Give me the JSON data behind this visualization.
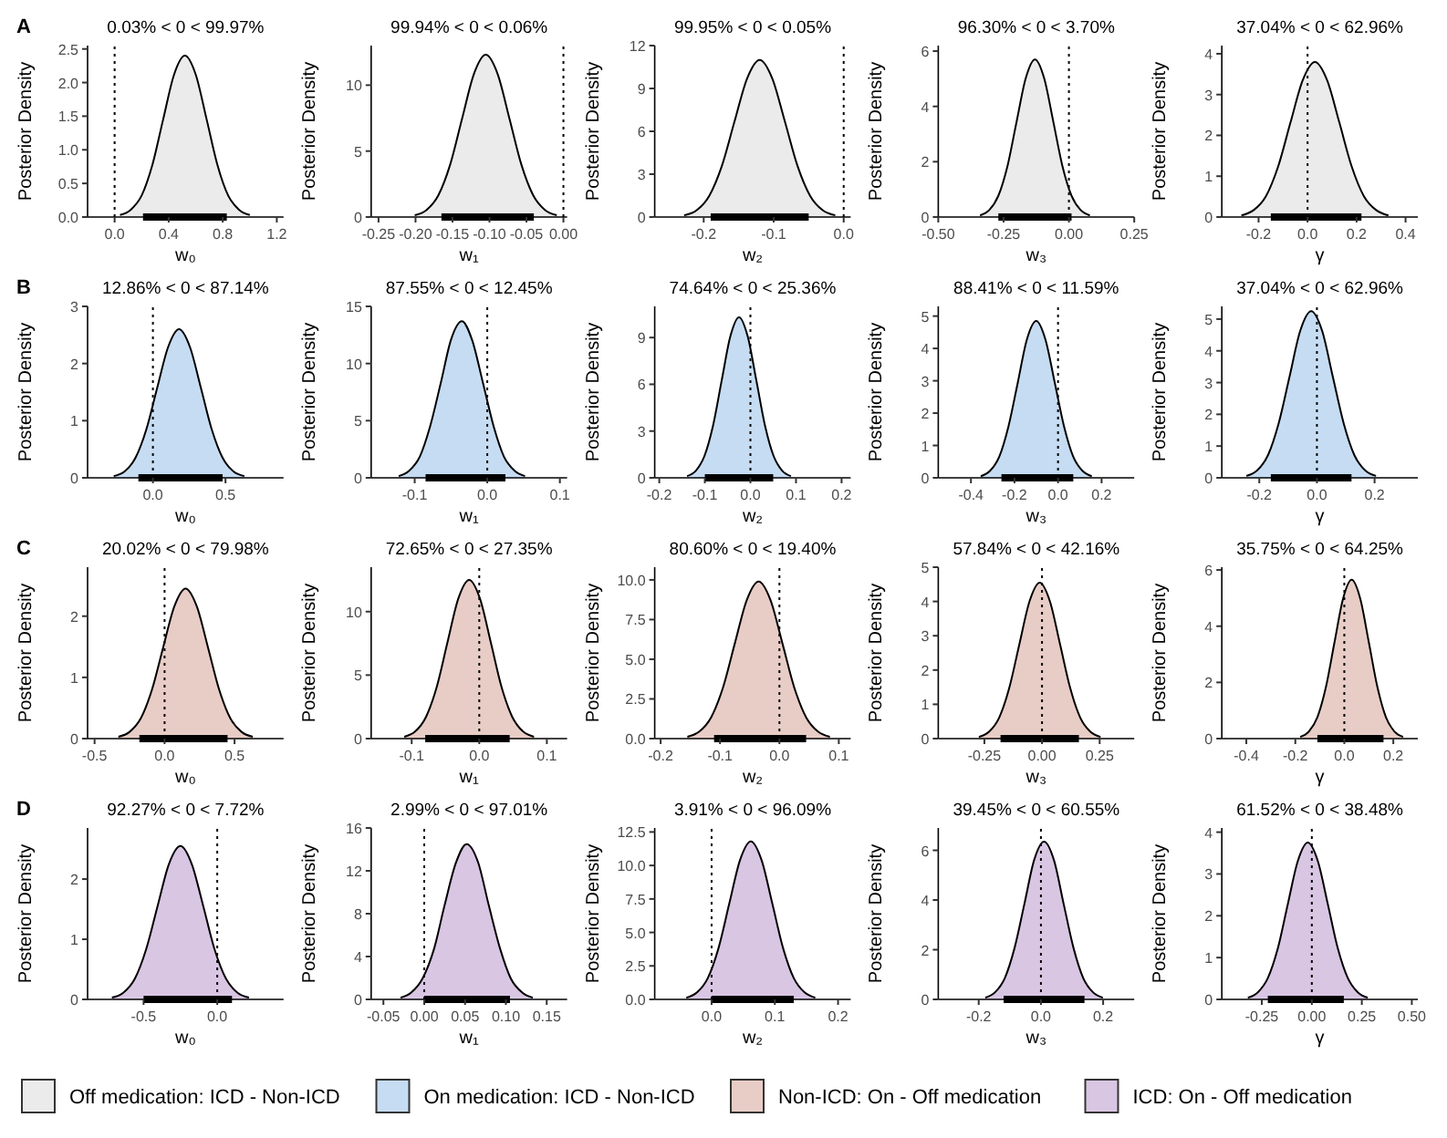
{
  "chart_data": [
    {
      "type": "area",
      "title": "A",
      "xlabel": "w₀",
      "ylabel": "Posterior Density",
      "annotations": [
        "0.03% < 0 < 99.97%"
      ],
      "xlim": [
        -0.2,
        1.25
      ],
      "xticks": [
        {
          "value": 0,
          "label": "0.0"
        },
        0.4,
        0.8,
        1.2
      ],
      "ylim": [
        0,
        2.55
      ],
      "yticks": [
        {
          "value": 0,
          "label": "0.0"
        },
        0.5,
        {
          "value": 1,
          "label": "1.0"
        },
        1.5,
        {
          "value": 2,
          "label": "2.0"
        },
        2.5
      ],
      "ref_lines": [
        {
          "axis": "x",
          "value": 0,
          "line_style": "dotted"
        }
      ],
      "legend": "bottom",
      "series": [
        {
          "name": "Off medication: ICD - Non-ICD",
          "type": "area",
          "color": "#ebebeb",
          "x": [
            0.04,
            0.12,
            0.2,
            0.28,
            0.36,
            0.44,
            0.52,
            0.6,
            0.68,
            0.76,
            0.84,
            0.92,
            1.0
          ],
          "values": [
            0.03,
            0.11,
            0.32,
            0.78,
            1.46,
            2.12,
            2.4,
            2.12,
            1.46,
            0.78,
            0.32,
            0.11,
            0.03
          ]
        },
        {
          "type": "line",
          "color": "#000000",
          "x": [
            0.21,
            0.83
          ],
          "values": [
            0,
            0
          ]
        }
      ]
    },
    {
      "type": "area",
      "xlabel": "w₁",
      "ylabel": "Posterior Density",
      "annotations": [
        "99.94% < 0 < 0.06%"
      ],
      "xlim": [
        -0.26,
        0.005
      ],
      "xticks": [
        -0.25,
        {
          "value": -0.2,
          "label": "-0.20"
        },
        -0.15,
        {
          "value": -0.1,
          "label": "-0.10"
        },
        -0.05,
        {
          "value": 0,
          "label": "0.00"
        }
      ],
      "ylim": [
        0,
        13
      ],
      "yticks": [
        0,
        5,
        10
      ],
      "ref_lines": [
        {
          "axis": "x",
          "value": 0,
          "line_style": "dotted"
        }
      ],
      "series": [
        {
          "type": "area",
          "color": "#ebebeb",
          "x": [
            -0.201,
            -0.185,
            -0.169,
            -0.153,
            -0.137,
            -0.121,
            -0.105,
            -0.089,
            -0.073,
            -0.057,
            -0.041,
            -0.025,
            -0.009
          ],
          "values": [
            0.14,
            0.54,
            1.66,
            4.0,
            7.47,
            10.85,
            12.3,
            10.85,
            7.47,
            4.0,
            1.66,
            0.54,
            0.14
          ]
        },
        {
          "type": "line",
          "color": "#000000",
          "x": [
            -0.165,
            -0.04
          ],
          "values": [
            0,
            0
          ]
        }
      ]
    },
    {
      "type": "area",
      "xlabel": "w₂",
      "ylabel": "Posterior Density",
      "annotations": [
        "99.95% < 0 < 0.05%"
      ],
      "xlim": [
        -0.27,
        0.01
      ],
      "xticks": [
        -0.2,
        -0.1,
        {
          "value": 0,
          "label": "0.0"
        }
      ],
      "ylim": [
        0,
        12
      ],
      "yticks": [
        0,
        3,
        6,
        9,
        12
      ],
      "ref_lines": [
        {
          "axis": "x",
          "value": 0,
          "line_style": "dotted"
        }
      ],
      "series": [
        {
          "type": "area",
          "color": "#ebebeb",
          "x": [
            -0.228,
            -0.21,
            -0.192,
            -0.174,
            -0.156,
            -0.138,
            -0.12,
            -0.102,
            -0.084,
            -0.066,
            -0.048,
            -0.03,
            -0.012
          ],
          "values": [
            0.12,
            0.48,
            1.49,
            3.58,
            6.68,
            9.7,
            11,
            9.7,
            6.68,
            3.58,
            1.49,
            0.48,
            0.12
          ]
        },
        {
          "type": "line",
          "color": "#000000",
          "x": [
            -0.19,
            -0.05
          ],
          "values": [
            0,
            0
          ]
        }
      ]
    },
    {
      "type": "area",
      "xlabel": "w₃",
      "ylabel": "Posterior Density",
      "annotations": [
        "96.30% < 0 < 3.70%"
      ],
      "xlim": [
        -0.5,
        0.25
      ],
      "xticks": [
        {
          "value": -0.5,
          "label": "-0.50"
        },
        -0.25,
        {
          "value": 0,
          "label": "0.00"
        },
        0.25
      ],
      "ylim": [
        0,
        6.2
      ],
      "yticks": [
        0,
        2,
        4,
        6
      ],
      "ref_lines": [
        {
          "axis": "x",
          "value": 0,
          "line_style": "dotted"
        }
      ],
      "series": [
        {
          "type": "area",
          "color": "#ebebeb",
          "x": [
            -0.34,
            -0.305,
            -0.27,
            -0.235,
            -0.2,
            -0.165,
            -0.13,
            -0.095,
            -0.06,
            -0.025,
            0.01,
            0.045,
            0.08
          ],
          "values": [
            0.06,
            0.25,
            0.77,
            1.85,
            3.46,
            5.03,
            5.7,
            5.03,
            3.46,
            1.85,
            0.77,
            0.25,
            0.06
          ]
        },
        {
          "type": "line",
          "color": "#000000",
          "x": [
            -0.27,
            0.01
          ],
          "values": [
            0,
            0
          ]
        }
      ]
    },
    {
      "type": "area",
      "xlabel": "γ",
      "ylabel": "Posterior Density",
      "annotations": [
        "37.04% < 0 < 62.96%"
      ],
      "xlim": [
        -0.35,
        0.45
      ],
      "xticks": [
        -0.2,
        {
          "value": 0,
          "label": "0.0"
        },
        0.2,
        0.4
      ],
      "ylim": [
        0,
        4.2
      ],
      "yticks": [
        0,
        1,
        2,
        3,
        4
      ],
      "ref_lines": [
        {
          "axis": "x",
          "value": 0,
          "line_style": "dotted"
        }
      ],
      "series": [
        {
          "type": "area",
          "color": "#ebebeb",
          "x": [
            -0.27,
            -0.22,
            -0.17,
            -0.12,
            -0.07,
            -0.02,
            0.03,
            0.08,
            0.13,
            0.18,
            0.23,
            0.28,
            0.33
          ],
          "values": [
            0.04,
            0.17,
            0.51,
            1.24,
            2.31,
            3.35,
            3.8,
            3.35,
            2.31,
            1.24,
            0.51,
            0.17,
            0.04
          ]
        },
        {
          "type": "line",
          "color": "#000000",
          "x": [
            -0.15,
            0.22
          ],
          "values": [
            0,
            0
          ]
        }
      ]
    },
    {
      "type": "area",
      "title": "B",
      "xlabel": "w₀",
      "ylabel": "Posterior Density",
      "annotations": [
        "12.86% < 0 < 87.14%"
      ],
      "xlim": [
        -0.45,
        0.9
      ],
      "xticks": [
        {
          "value": 0,
          "label": "0.0"
        },
        0.5
      ],
      "ylim": [
        0,
        3
      ],
      "yticks": [
        0,
        1,
        2,
        3
      ],
      "ref_lines": [
        {
          "axis": "x",
          "value": 0,
          "line_style": "dotted"
        }
      ],
      "legend": "bottom",
      "series": [
        {
          "name": "On medication: ICD - Non-ICD",
          "type": "area",
          "color": "#c6dcf2",
          "x": [
            -0.27,
            -0.195,
            -0.12,
            -0.045,
            0.03,
            0.105,
            0.18,
            0.255,
            0.33,
            0.405,
            0.48,
            0.555,
            0.63
          ],
          "values": [
            0.03,
            0.11,
            0.35,
            0.85,
            1.58,
            2.29,
            2.6,
            2.29,
            1.58,
            0.85,
            0.35,
            0.11,
            0.03
          ]
        },
        {
          "type": "line",
          "color": "#000000",
          "x": [
            -0.1,
            0.48
          ],
          "values": [
            0,
            0
          ]
        }
      ]
    },
    {
      "type": "area",
      "xlabel": "w₁",
      "ylabel": "Posterior Density",
      "annotations": [
        "87.55% < 0 < 12.45%"
      ],
      "xlim": [
        -0.16,
        0.11
      ],
      "xticks": [
        -0.1,
        {
          "value": 0,
          "label": "0.0"
        },
        0.1
      ],
      "ylim": [
        0,
        15
      ],
      "yticks": [
        0,
        5,
        10,
        15
      ],
      "ref_lines": [
        {
          "axis": "x",
          "value": 0,
          "line_style": "dotted"
        }
      ],
      "series": [
        {
          "type": "area",
          "color": "#c6dcf2",
          "x": [
            -0.122,
            -0.108,
            -0.093,
            -0.079,
            -0.064,
            -0.05,
            -0.035,
            -0.021,
            -0.006,
            0.009,
            0.023,
            0.038,
            0.052
          ],
          "values": [
            0.15,
            0.6,
            1.85,
            4.45,
            8.32,
            12.08,
            13.7,
            12.08,
            8.32,
            4.45,
            1.85,
            0.6,
            0.15
          ]
        },
        {
          "type": "line",
          "color": "#000000",
          "x": [
            -0.085,
            0.025
          ],
          "values": [
            0,
            0
          ]
        }
      ]
    },
    {
      "type": "area",
      "xlabel": "w₂",
      "ylabel": "Posterior Density",
      "annotations": [
        "74.64% < 0 < 25.36%"
      ],
      "xlim": [
        -0.21,
        0.22
      ],
      "xticks": [
        -0.2,
        -0.1,
        {
          "value": 0,
          "label": "0.0"
        },
        0.1,
        0.2
      ],
      "ylim": [
        0,
        11
      ],
      "yticks": [
        0,
        3,
        6,
        9
      ],
      "ref_lines": [
        {
          "axis": "x",
          "value": 0,
          "line_style": "dotted"
        }
      ],
      "series": [
        {
          "type": "area",
          "color": "#c6dcf2",
          "x": [
            -0.139,
            -0.12,
            -0.101,
            -0.082,
            -0.063,
            -0.044,
            -0.025,
            -0.006,
            0.013,
            0.032,
            0.051,
            0.07,
            0.089
          ],
          "values": [
            0.11,
            0.45,
            1.39,
            3.35,
            6.25,
            9.08,
            10.3,
            9.08,
            6.25,
            3.35,
            1.39,
            0.45,
            0.11
          ]
        },
        {
          "type": "line",
          "color": "#000000",
          "x": [
            -0.1,
            0.05
          ],
          "values": [
            0,
            0
          ]
        }
      ]
    },
    {
      "type": "area",
      "xlabel": "w₃",
      "ylabel": "Posterior Density",
      "annotations": [
        "88.41% < 0 < 11.59%"
      ],
      "xlim": [
        -0.55,
        0.35
      ],
      "xticks": [
        -0.4,
        -0.2,
        {
          "value": 0,
          "label": "0.0"
        },
        0.2
      ],
      "ylim": [
        0,
        5.3
      ],
      "yticks": [
        0,
        1,
        2,
        3,
        4,
        5
      ],
      "ref_lines": [
        {
          "axis": "x",
          "value": 0,
          "line_style": "dotted"
        }
      ],
      "series": [
        {
          "type": "area",
          "color": "#c6dcf2",
          "x": [
            -0.355,
            -0.313,
            -0.27,
            -0.228,
            -0.185,
            -0.143,
            -0.1,
            -0.058,
            -0.015,
            0.028,
            0.07,
            0.113,
            0.155
          ],
          "values": [
            0.05,
            0.21,
            0.65,
            1.58,
            2.94,
            4.28,
            4.85,
            4.28,
            2.94,
            1.58,
            0.65,
            0.21,
            0.05
          ]
        },
        {
          "type": "line",
          "color": "#000000",
          "x": [
            -0.26,
            0.07
          ],
          "values": [
            0,
            0
          ]
        }
      ]
    },
    {
      "type": "area",
      "xlabel": "γ",
      "ylabel": "Posterior Density",
      "annotations": [
        "37.04% < 0 < 62.96%"
      ],
      "xlim": [
        -0.33,
        0.35
      ],
      "xticks": [
        -0.2,
        {
          "value": 0,
          "label": "0.0"
        },
        0.2
      ],
      "ylim": [
        0,
        5.4
      ],
      "yticks": [
        0,
        1,
        2,
        3,
        4,
        5
      ],
      "ref_lines": [
        {
          "axis": "x",
          "value": 0,
          "line_style": "dotted"
        }
      ],
      "series": [
        {
          "type": "area",
          "color": "#c6dcf2",
          "x": [
            -0.245,
            -0.208,
            -0.17,
            -0.133,
            -0.095,
            -0.058,
            -0.02,
            0.018,
            0.055,
            0.093,
            0.13,
            0.168,
            0.205
          ],
          "values": [
            0.06,
            0.23,
            0.71,
            1.71,
            3.19,
            4.63,
            5.25,
            4.63,
            3.19,
            1.71,
            0.71,
            0.23,
            0.06
          ]
        },
        {
          "type": "line",
          "color": "#000000",
          "x": [
            -0.16,
            0.12
          ],
          "values": [
            0,
            0
          ]
        }
      ]
    },
    {
      "type": "area",
      "title": "C",
      "xlabel": "w₀",
      "ylabel": "Posterior Density",
      "annotations": [
        "20.02% < 0 < 79.98%"
      ],
      "xlim": [
        -0.55,
        0.85
      ],
      "xticks": [
        -0.5,
        {
          "value": 0,
          "label": "0.0"
        },
        0.5
      ],
      "ylim": [
        0,
        2.8
      ],
      "yticks": [
        0,
        1,
        2
      ],
      "ref_lines": [
        {
          "axis": "x",
          "value": 0,
          "line_style": "dotted"
        }
      ],
      "legend": "bottom",
      "series": [
        {
          "name": "Non-ICD: On - Off medication",
          "type": "area",
          "color": "#e8cdc6",
          "x": [
            -0.33,
            -0.25,
            -0.17,
            -0.09,
            -0.01,
            0.07,
            0.15,
            0.23,
            0.31,
            0.39,
            0.47,
            0.55,
            0.63
          ],
          "values": [
            0.03,
            0.11,
            0.33,
            0.8,
            1.49,
            2.16,
            2.45,
            2.16,
            1.49,
            0.8,
            0.33,
            0.11,
            0.03
          ]
        },
        {
          "type": "line",
          "color": "#000000",
          "x": [
            -0.18,
            0.45
          ],
          "values": [
            0,
            0
          ]
        }
      ]
    },
    {
      "type": "area",
      "xlabel": "w₁",
      "ylabel": "Posterior Density",
      "annotations": [
        "72.65% < 0 < 27.35%"
      ],
      "xlim": [
        -0.16,
        0.13
      ],
      "xticks": [
        -0.1,
        {
          "value": 0,
          "label": "0.0"
        },
        0.1
      ],
      "ylim": [
        0,
        13.5
      ],
      "yticks": [
        0,
        5,
        10
      ],
      "ref_lines": [
        {
          "axis": "x",
          "value": 0,
          "line_style": "dotted"
        }
      ],
      "series": [
        {
          "type": "area",
          "color": "#e8cdc6",
          "x": [
            -0.111,
            -0.095,
            -0.079,
            -0.063,
            -0.047,
            -0.031,
            -0.015,
            0.001,
            0.017,
            0.033,
            0.049,
            0.065,
            0.081
          ],
          "values": [
            0.14,
            0.55,
            1.69,
            4.06,
            7.59,
            11.03,
            12.5,
            11.03,
            7.59,
            4.06,
            1.69,
            0.55,
            0.14
          ]
        },
        {
          "type": "line",
          "color": "#000000",
          "x": [
            -0.08,
            0.045
          ],
          "values": [
            0,
            0
          ]
        }
      ]
    },
    {
      "type": "area",
      "xlabel": "w₂",
      "ylabel": "Posterior Density",
      "annotations": [
        "80.60% < 0 < 19.40%"
      ],
      "xlim": [
        -0.21,
        0.12
      ],
      "xticks": [
        -0.2,
        -0.1,
        {
          "value": 0,
          "label": "0.0"
        },
        0.1
      ],
      "ylim": [
        0,
        10.8
      ],
      "yticks": [
        {
          "value": 0,
          "label": "0.0"
        },
        2.5,
        {
          "value": 5,
          "label": "5.0"
        },
        7.5,
        {
          "value": 10,
          "label": "10.0"
        }
      ],
      "ref_lines": [
        {
          "axis": "x",
          "value": 0,
          "line_style": "dotted"
        }
      ],
      "series": [
        {
          "type": "area",
          "color": "#e8cdc6",
          "x": [
            -0.155,
            -0.135,
            -0.115,
            -0.095,
            -0.075,
            -0.055,
            -0.035,
            -0.015,
            0.005,
            0.025,
            0.045,
            0.065,
            0.085
          ],
          "values": [
            0.11,
            0.44,
            1.34,
            3.22,
            6.01,
            8.73,
            9.9,
            8.73,
            6.01,
            3.22,
            1.34,
            0.44,
            0.11
          ]
        },
        {
          "type": "line",
          "color": "#000000",
          "x": [
            -0.11,
            0.045
          ],
          "values": [
            0,
            0
          ]
        }
      ]
    },
    {
      "type": "area",
      "xlabel": "w₃",
      "ylabel": "Posterior Density",
      "annotations": [
        "57.84% < 0 < 42.16%"
      ],
      "xlim": [
        -0.45,
        0.4
      ],
      "xticks": [
        -0.25,
        {
          "value": 0,
          "label": "0.00"
        },
        0.25
      ],
      "ylim": [
        0,
        5
      ],
      "yticks": [
        0,
        1,
        2,
        3,
        4,
        5
      ],
      "ref_lines": [
        {
          "axis": "x",
          "value": 0,
          "line_style": "dotted"
        }
      ],
      "series": [
        {
          "type": "area",
          "color": "#e8cdc6",
          "x": [
            -0.274,
            -0.23,
            -0.186,
            -0.142,
            -0.098,
            -0.054,
            -0.01,
            0.034,
            0.078,
            0.122,
            0.166,
            0.21,
            0.254
          ],
          "values": [
            0.05,
            0.2,
            0.61,
            1.48,
            2.76,
            4.01,
            4.55,
            4.01,
            2.76,
            1.48,
            0.61,
            0.2,
            0.05
          ]
        },
        {
          "type": "line",
          "color": "#000000",
          "x": [
            -0.18,
            0.16
          ],
          "values": [
            0,
            0
          ]
        }
      ]
    },
    {
      "type": "area",
      "xlabel": "γ",
      "ylabel": "Posterior Density",
      "annotations": [
        "35.75% < 0 < 64.25%"
      ],
      "xlim": [
        -0.5,
        0.3
      ],
      "xticks": [
        -0.4,
        -0.2,
        {
          "value": 0,
          "label": "0.0"
        },
        0.2
      ],
      "ylim": [
        0,
        6.1
      ],
      "yticks": [
        0,
        2,
        4,
        6
      ],
      "ref_lines": [
        {
          "axis": "x",
          "value": 0,
          "line_style": "dotted"
        }
      ],
      "series": [
        {
          "type": "area",
          "color": "#e8cdc6",
          "x": [
            -0.18,
            -0.145,
            -0.11,
            -0.075,
            -0.04,
            -0.005,
            0.03,
            0.065,
            0.1,
            0.135,
            0.17,
            0.205,
            0.24
          ],
          "values": [
            0.06,
            0.25,
            0.76,
            1.84,
            3.43,
            4.98,
            5.65,
            4.98,
            3.43,
            1.84,
            0.76,
            0.25,
            0.06
          ]
        },
        {
          "type": "line",
          "color": "#000000",
          "x": [
            -0.11,
            0.16
          ],
          "values": [
            0,
            0
          ]
        }
      ]
    },
    {
      "type": "area",
      "title": "D",
      "xlabel": "w₀",
      "ylabel": "Posterior Density",
      "annotations": [
        "92.27% < 0 < 7.72%"
      ],
      "xlim": [
        -0.88,
        0.45
      ],
      "xticks": [
        -0.5,
        {
          "value": 0,
          "label": "0.0"
        }
      ],
      "ylim": [
        0,
        2.85
      ],
      "yticks": [
        0,
        1,
        2
      ],
      "ref_lines": [
        {
          "axis": "x",
          "value": 0,
          "line_style": "dotted"
        }
      ],
      "legend": "bottom",
      "series": [
        {
          "name": "ICD: On - Off medication",
          "type": "area",
          "color": "#d9c6e3",
          "x": [
            -0.715,
            -0.638,
            -0.56,
            -0.483,
            -0.405,
            -0.328,
            -0.25,
            -0.173,
            -0.095,
            -0.018,
            0.06,
            0.138,
            0.215
          ],
          "values": [
            0.03,
            0.11,
            0.34,
            0.83,
            1.55,
            2.25,
            2.55,
            2.25,
            1.55,
            0.83,
            0.34,
            0.11,
            0.03
          ]
        },
        {
          "type": "line",
          "color": "#000000",
          "x": [
            -0.5,
            0.1
          ],
          "values": [
            0,
            0
          ]
        }
      ]
    },
    {
      "type": "area",
      "xlabel": "w₁",
      "ylabel": "Posterior Density",
      "annotations": [
        "2.99% < 0 < 97.01%"
      ],
      "xlim": [
        -0.065,
        0.175
      ],
      "xticks": [
        -0.05,
        {
          "value": 0,
          "label": "0.00"
        },
        0.05,
        {
          "value": 0.1,
          "label": "0.10"
        },
        0.15
      ],
      "ylim": [
        0,
        16
      ],
      "yticks": [
        0,
        4,
        8,
        12,
        16
      ],
      "ref_lines": [
        {
          "axis": "x",
          "value": 0,
          "line_style": "dotted"
        }
      ],
      "series": [
        {
          "type": "area",
          "color": "#d9c6e3",
          "x": [
            -0.029,
            -0.016,
            -0.002,
            0.012,
            0.025,
            0.039,
            0.052,
            0.066,
            0.079,
            0.093,
            0.106,
            0.12,
            0.133
          ],
          "values": [
            0.16,
            0.64,
            1.96,
            4.71,
            8.8,
            12.79,
            14.5,
            12.79,
            8.8,
            4.71,
            1.96,
            0.64,
            0.16
          ]
        },
        {
          "type": "line",
          "color": "#000000",
          "x": [
            0.0,
            0.105
          ],
          "values": [
            0,
            0
          ]
        }
      ]
    },
    {
      "type": "area",
      "xlabel": "w₂",
      "ylabel": "Posterior Density",
      "annotations": [
        "3.91% < 0 < 96.09%"
      ],
      "xlim": [
        -0.09,
        0.22
      ],
      "xticks": [
        {
          "value": 0,
          "label": "0.0"
        },
        0.1,
        0.2
      ],
      "ylim": [
        0,
        12.8
      ],
      "yticks": [
        {
          "value": 0,
          "label": "0.0"
        },
        2.5,
        {
          "value": 5,
          "label": "5.0"
        },
        7.5,
        {
          "value": 10,
          "label": "10.0"
        },
        12.5
      ],
      "ref_lines": [
        {
          "axis": "x",
          "value": 0,
          "line_style": "dotted"
        }
      ],
      "series": [
        {
          "type": "area",
          "color": "#d9c6e3",
          "x": [
            -0.04,
            -0.023,
            -0.006,
            0.011,
            0.028,
            0.045,
            0.062,
            0.079,
            0.096,
            0.113,
            0.13,
            0.147,
            0.164
          ],
          "values": [
            0.13,
            0.52,
            1.59,
            3.84,
            7.16,
            10.41,
            11.8,
            10.41,
            7.16,
            3.84,
            1.59,
            0.52,
            0.13
          ]
        },
        {
          "type": "line",
          "color": "#000000",
          "x": [
            0.0,
            0.13
          ],
          "values": [
            0,
            0
          ]
        }
      ]
    },
    {
      "type": "area",
      "xlabel": "w₃",
      "ylabel": "Posterior Density",
      "annotations": [
        "39.45% < 0 < 60.55%"
      ],
      "xlim": [
        -0.33,
        0.3
      ],
      "xticks": [
        -0.2,
        {
          "value": 0,
          "label": "0.0"
        },
        0.2
      ],
      "ylim": [
        0,
        6.9
      ],
      "yticks": [
        0,
        2,
        4,
        6
      ],
      "ref_lines": [
        {
          "axis": "x",
          "value": 0,
          "line_style": "dotted"
        }
      ],
      "series": [
        {
          "type": "area",
          "color": "#d9c6e3",
          "x": [
            -0.179,
            -0.148,
            -0.116,
            -0.085,
            -0.053,
            -0.022,
            0.01,
            0.042,
            0.073,
            0.105,
            0.136,
            0.168,
            0.199
          ],
          "values": [
            0.07,
            0.28,
            0.86,
            2.06,
            3.85,
            5.6,
            6.35,
            5.6,
            3.85,
            2.06,
            0.86,
            0.28,
            0.07
          ]
        },
        {
          "type": "line",
          "color": "#000000",
          "x": [
            -0.12,
            0.14
          ],
          "values": [
            0,
            0
          ]
        }
      ]
    },
    {
      "type": "area",
      "xlabel": "γ",
      "ylabel": "Posterior Density",
      "annotations": [
        "61.52% < 0 < 38.48%"
      ],
      "xlim": [
        -0.45,
        0.53
      ],
      "xticks": [
        -0.25,
        {
          "value": 0,
          "label": "0.00"
        },
        0.25,
        {
          "value": 0.5,
          "label": "0.50"
        }
      ],
      "ylim": [
        0,
        4.1
      ],
      "yticks": [
        0,
        1,
        2,
        3,
        4
      ],
      "ref_lines": [
        {
          "axis": "x",
          "value": 0,
          "line_style": "dotted"
        }
      ],
      "series": [
        {
          "type": "area",
          "color": "#d9c6e3",
          "x": [
            -0.32,
            -0.27,
            -0.22,
            -0.17,
            -0.12,
            -0.07,
            -0.02,
            0.03,
            0.08,
            0.13,
            0.18,
            0.23,
            0.28
          ],
          "values": [
            0.04,
            0.17,
            0.51,
            1.22,
            2.28,
            3.31,
            3.75,
            3.31,
            2.28,
            1.22,
            0.51,
            0.17,
            0.04
          ]
        },
        {
          "type": "line",
          "color": "#000000",
          "x": [
            -0.22,
            0.16
          ],
          "values": [
            0,
            0
          ]
        }
      ]
    }
  ]
}
